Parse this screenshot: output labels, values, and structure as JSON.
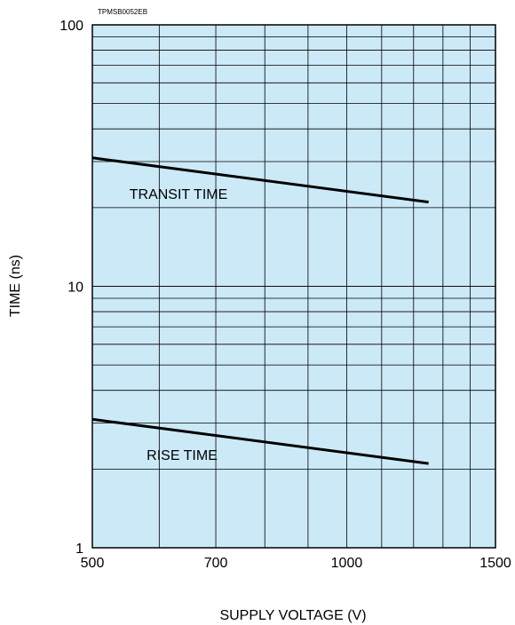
{
  "figure_code": "TPMSB0052EB",
  "chart_data": {
    "type": "line",
    "title": "",
    "xlabel": "SUPPLY VOLTAGE (V)",
    "ylabel": "TIME (ns)",
    "x_scale": "log",
    "y_scale": "log",
    "xlim": [
      500,
      1500
    ],
    "ylim": [
      1,
      100
    ],
    "x_tick_labels": [
      "500",
      "700",
      "1000",
      "1500"
    ],
    "y_tick_labels": [
      "1",
      "10",
      "100"
    ],
    "grid": true,
    "legend": "none",
    "series": [
      {
        "name": "TRANSIT TIME",
        "x": [
          500,
          1250
        ],
        "y": [
          31,
          21
        ]
      },
      {
        "name": "RISE TIME",
        "x": [
          500,
          1250
        ],
        "y": [
          3.1,
          2.1
        ]
      }
    ],
    "colors": {
      "plot_background": "#cce9f7",
      "grid": "#000000",
      "line": "#000000"
    }
  }
}
